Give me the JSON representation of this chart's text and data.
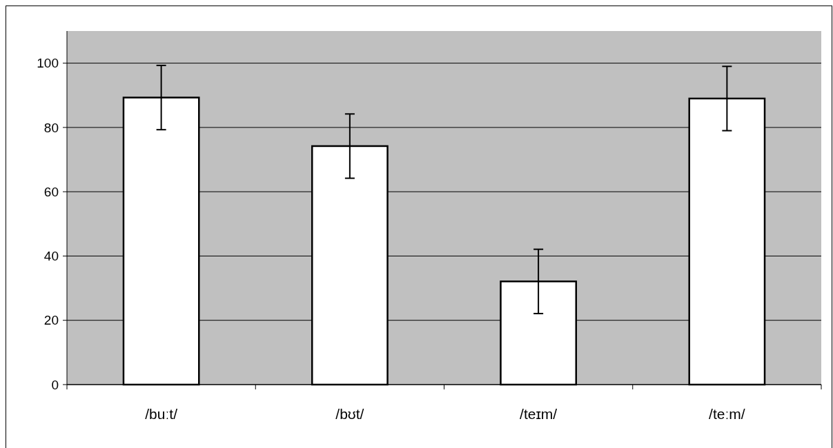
{
  "chart_data": {
    "type": "bar",
    "categories": [
      "/buːt/",
      "/bʊt/",
      "/teɪm/",
      "/teːm/"
    ],
    "values": [
      89.3,
      74.2,
      32.1,
      89.0
    ],
    "errors": [
      10,
      10,
      10,
      10
    ],
    "color": "#ffffff",
    "ylim": [
      0,
      110
    ],
    "yticks": [
      0,
      20,
      40,
      60,
      80,
      100
    ],
    "grid": "y"
  }
}
